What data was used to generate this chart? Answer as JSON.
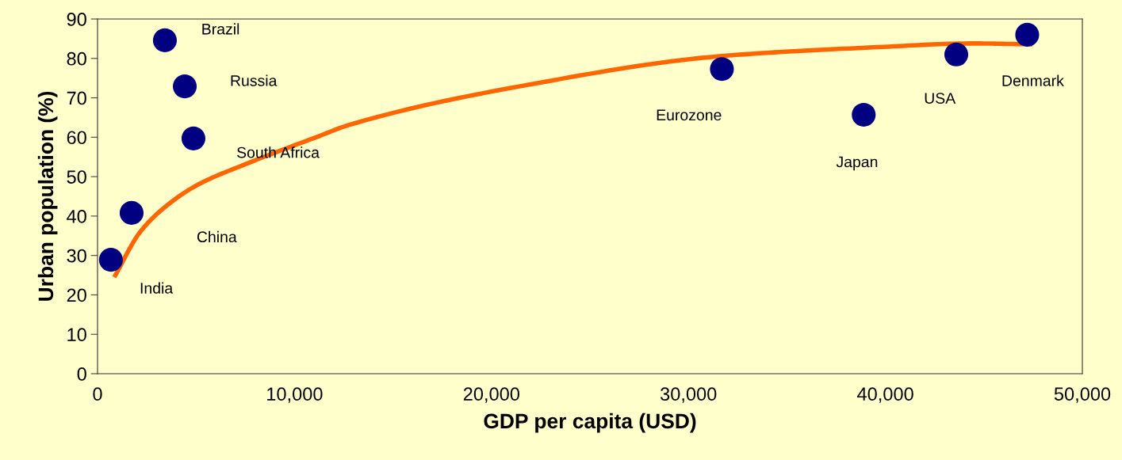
{
  "chart_data": {
    "type": "scatter",
    "xlabel": "GDP per capita (USD)",
    "ylabel": "Urban population (%)",
    "xlim": [
      0,
      50000
    ],
    "xticks": [
      {
        "value": 0,
        "label": "0"
      },
      {
        "value": 10000,
        "label": "10,000"
      },
      {
        "value": 20000,
        "label": "20,000"
      },
      {
        "value": 30000,
        "label": "30,000"
      },
      {
        "value": 40000,
        "label": "40,000"
      },
      {
        "value": 50000,
        "label": "50,000"
      }
    ],
    "ylim": [
      0,
      90
    ],
    "yticks": [
      0,
      10,
      20,
      30,
      40,
      50,
      60,
      70,
      80,
      90
    ],
    "grid": false,
    "marker": "circle",
    "series": [
      {
        "color": "#000080",
        "x": [
          680,
          1730,
          3420,
          4430,
          4870,
          31700,
          38900,
          43600,
          47200
        ],
        "values": [
          28.9,
          40.8,
          84.6,
          72.9,
          59.7,
          77.3,
          65.7,
          81.0,
          86.0
        ]
      },
      {
        "type": "line",
        "color": "#ff6600",
        "line_style": "solid",
        "marker": "none",
        "x": [
          850,
          2170,
          3500,
          5110,
          7530,
          11150,
          12760,
          21420,
          31680,
          39370,
          44530,
          47460
        ],
        "values": [
          24.5,
          36.0,
          42.6,
          48.0,
          53.2,
          60.1,
          63.1,
          72.9,
          80.6,
          82.8,
          83.8,
          83.6
        ]
      }
    ],
    "annotations": [
      "India",
      "China",
      "Brazil",
      "Russia",
      "South Africa",
      "Eurozone",
      "Japan",
      "USA",
      "Denmark"
    ]
  }
}
